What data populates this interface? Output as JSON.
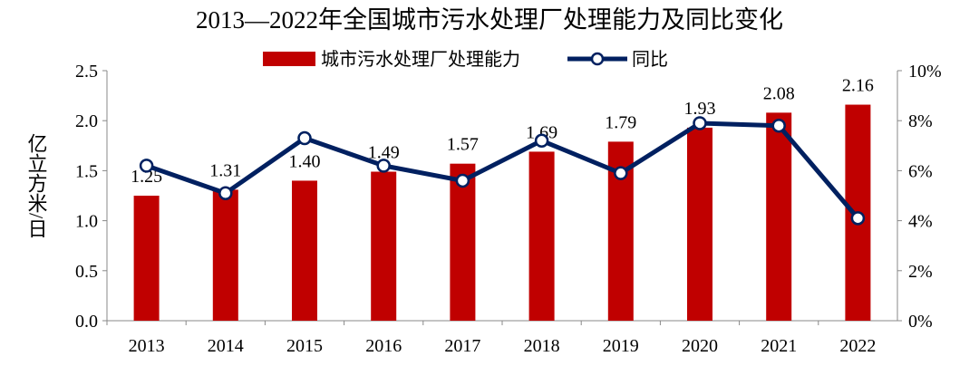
{
  "chart_data": {
    "type": "bar+line",
    "title": "2013—2022年全国城市污水处理厂处理能力及同比变化",
    "categories": [
      "2013",
      "2014",
      "2015",
      "2016",
      "2017",
      "2018",
      "2019",
      "2020",
      "2021",
      "2022"
    ],
    "series": [
      {
        "name": "城市污水处理厂处理能力",
        "type": "bar",
        "axis": "left",
        "color": "#C00000",
        "values": [
          1.25,
          1.31,
          1.4,
          1.49,
          1.57,
          1.69,
          1.79,
          1.93,
          2.08,
          2.16
        ],
        "labels": [
          "1.25",
          "1.31",
          "1.40",
          "1.49",
          "1.57",
          "1.69",
          "1.79",
          "1.93",
          "2.08",
          "2.16"
        ]
      },
      {
        "name": "同比",
        "type": "line",
        "axis": "right",
        "color": "#002060",
        "values": [
          6.2,
          5.1,
          7.3,
          6.2,
          5.6,
          7.2,
          5.9,
          7.9,
          7.8,
          4.1
        ]
      }
    ],
    "ylabel": "亿立方米/日",
    "ylim": [
      0,
      2.5
    ],
    "yticks": [
      "0.0",
      "0.5",
      "1.0",
      "1.5",
      "2.0",
      "2.5"
    ],
    "y2lim": [
      0,
      10
    ],
    "y2ticks": [
      "0%",
      "2%",
      "4%",
      "6%",
      "8%",
      "10%"
    ],
    "grid": false,
    "legend": "top"
  }
}
